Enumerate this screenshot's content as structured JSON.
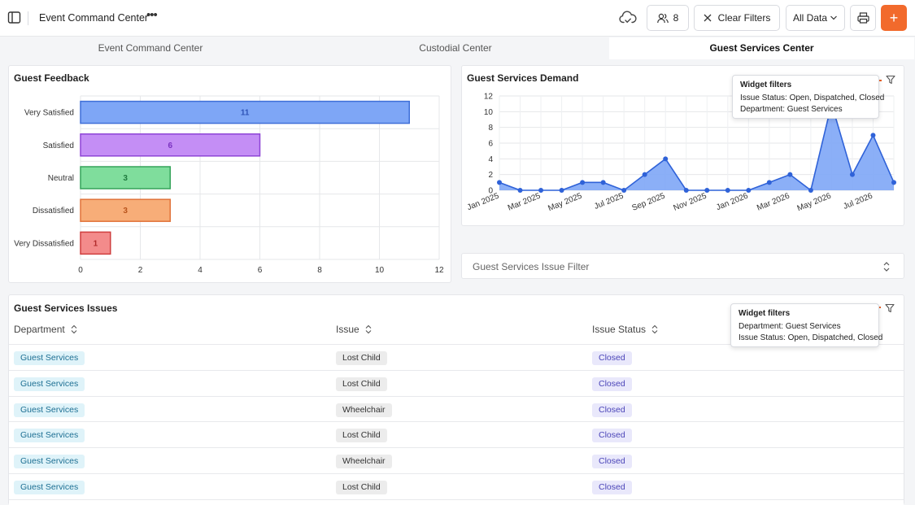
{
  "header": {
    "title": "Event Command Center",
    "users_count": "8",
    "clear_filters": "Clear Filters",
    "data_scope": "All Data",
    "add_label": "+"
  },
  "tabs": [
    {
      "label": "Event Command Center",
      "active": false
    },
    {
      "label": "Custodial Center",
      "active": false
    },
    {
      "label": "Guest Services Center",
      "active": true
    }
  ],
  "guest_feedback": {
    "title": "Guest Feedback",
    "chart_data": {
      "type": "bar",
      "orientation": "horizontal",
      "categories": [
        "Very Satisfied",
        "Satisfied",
        "Neutral",
        "Dissatisfied",
        "Very Dissatisfied"
      ],
      "values": [
        11,
        6,
        3,
        3,
        1
      ],
      "colors": [
        "#7ea6f6",
        "#c48ef5",
        "#7fdd9c",
        "#f7ad78",
        "#f38b8b"
      ],
      "border_colors": [
        "#3f6fd8",
        "#8e44d6",
        "#35a45a",
        "#e0733a",
        "#cf3e3e"
      ],
      "label_colors": [
        "#2f54b8",
        "#7a32c0",
        "#1e7a3d",
        "#b8531c",
        "#b12b2b"
      ],
      "xlim": [
        0,
        12
      ],
      "xticks": [
        0,
        2,
        4,
        6,
        8,
        10,
        12
      ],
      "grid": true
    }
  },
  "guest_services_demand": {
    "title": "Guest Services Demand",
    "chart_data": {
      "type": "area",
      "x": [
        "Jan 2025",
        "Feb 2025",
        "Mar 2025",
        "Apr 2025",
        "May 2025",
        "Jun 2025",
        "Jul 2025",
        "Aug 2025",
        "Sep 2025",
        "Oct 2025",
        "Nov 2025",
        "Dec 2025",
        "Jan 2026",
        "Feb 2026",
        "Mar 2026",
        "Apr 2026",
        "May 2026",
        "Jun 2026",
        "Jul 2026",
        "Aug 2026"
      ],
      "values": [
        1,
        0,
        0,
        0,
        1,
        1,
        0,
        2,
        4,
        0,
        0,
        0,
        0,
        1,
        2,
        0,
        11,
        2,
        7,
        1
      ],
      "x_tick_labels": [
        "Jan 2025",
        "Mar 2025",
        "May 2025",
        "Jul 2025",
        "Sep 2025",
        "Nov 2025",
        "Jan 2026",
        "Mar 2026",
        "May 2026",
        "Jul 2026"
      ],
      "ylim": [
        0,
        12
      ],
      "yticks": [
        0,
        2,
        4,
        6,
        8,
        10,
        12
      ],
      "color": "#2f62d8",
      "fill": "#7ea6f6",
      "grid": true
    }
  },
  "demand_tooltip": {
    "title": "Widget filters",
    "lines": [
      "Issue Status: Open, Dispatched, Closed",
      "Department: Guest Services"
    ]
  },
  "issue_filter": {
    "label": "Guest Services Issue Filter"
  },
  "issues": {
    "title": "Guest Services Issues",
    "columns": [
      "Department",
      "Issue",
      "Issue Status"
    ],
    "rows": [
      {
        "department": "Guest Services",
        "issue": "Lost Child",
        "status": "Closed"
      },
      {
        "department": "Guest Services",
        "issue": "Lost Child",
        "status": "Closed"
      },
      {
        "department": "Guest Services",
        "issue": "Wheelchair",
        "status": "Closed"
      },
      {
        "department": "Guest Services",
        "issue": "Lost Child",
        "status": "Closed"
      },
      {
        "department": "Guest Services",
        "issue": "Wheelchair",
        "status": "Closed"
      },
      {
        "department": "Guest Services",
        "issue": "Lost Child",
        "status": "Closed"
      }
    ]
  },
  "issues_tooltip": {
    "title": "Widget filters",
    "lines": [
      "Department: Guest Services",
      "Issue Status: Open, Dispatched, Closed"
    ]
  },
  "colors": {
    "accent": "#f26a2c",
    "annotation_arrow": "#e8622a"
  }
}
